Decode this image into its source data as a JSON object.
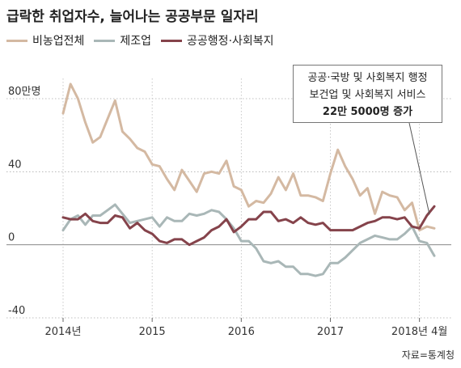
{
  "title": "급락한 취업자수, 늘어나는 공공부문 일자리",
  "source": "자료=통계청",
  "callout": {
    "line1": "공공·국방 및 사회복지 행정",
    "line2": "보건업 및 사회복지 서비스",
    "line3": "22만 5000명 증가"
  },
  "chart_data": {
    "type": "line",
    "title": "급락한 취업자수, 늘어나는 공공부문 일자리",
    "xlabel": "",
    "ylabel": "",
    "unit": "만명",
    "ylim": [
      -40,
      80
    ],
    "yticks": [
      80,
      40,
      0,
      -40
    ],
    "ytick_labels": [
      "80만명",
      "40",
      "0",
      "-40"
    ],
    "x_ticks": [
      {
        "index": 0,
        "label": "2014년"
      },
      {
        "index": 12,
        "label": "2015"
      },
      {
        "index": 24,
        "label": "2016"
      },
      {
        "index": 36,
        "label": "2017"
      },
      {
        "index": 48,
        "label": "2018년 4월"
      }
    ],
    "grid": true,
    "legend_position": "top-left",
    "series": [
      {
        "name": "비농업전체",
        "color": "#d4b9a2",
        "values": [
          72,
          88,
          80,
          67,
          56,
          59,
          69,
          79,
          62,
          58,
          53,
          51,
          44,
          43,
          36,
          30,
          41,
          35,
          29,
          39,
          40,
          39,
          46,
          32,
          30,
          21,
          24,
          23,
          28,
          37,
          30,
          39,
          27,
          27,
          26,
          24,
          39,
          52,
          43,
          36,
          27,
          31,
          17,
          29,
          27,
          26,
          19,
          23,
          8,
          10,
          9
        ]
      },
      {
        "name": "제조업",
        "color": "#a9b7b7",
        "values": [
          8,
          14,
          16,
          11,
          16,
          16,
          19,
          22,
          17,
          12,
          13,
          14,
          15,
          10,
          15,
          13,
          13,
          17,
          16,
          17,
          19,
          18,
          14,
          9,
          2,
          2,
          -2,
          -9,
          -10,
          -9,
          -12,
          -12,
          -16,
          -16,
          -17,
          -16,
          -10,
          -10,
          -7,
          -3,
          1,
          3,
          5,
          4,
          3,
          3,
          6,
          10,
          2,
          1,
          -6
        ]
      },
      {
        "name": "공공행정·사회복지",
        "color": "#85434b",
        "values": [
          15,
          14,
          14,
          17,
          13,
          12,
          12,
          16,
          15,
          9,
          12,
          8,
          6,
          2,
          1,
          3,
          3,
          0,
          2,
          4,
          8,
          10,
          14,
          7,
          10,
          14,
          14,
          18,
          18,
          13,
          14,
          12,
          15,
          12,
          11,
          12,
          8,
          8,
          8,
          8,
          10,
          12,
          13,
          15,
          15,
          14,
          15,
          10,
          9,
          16,
          21
        ]
      }
    ]
  }
}
